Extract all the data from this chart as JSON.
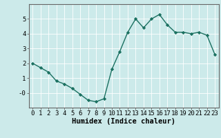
{
  "x": [
    0,
    1,
    2,
    3,
    4,
    5,
    6,
    7,
    8,
    9,
    10,
    11,
    12,
    13,
    14,
    15,
    16,
    17,
    18,
    19,
    20,
    21,
    22,
    23
  ],
  "y": [
    2.0,
    1.7,
    1.4,
    0.8,
    0.6,
    0.3,
    -0.1,
    -0.5,
    -0.6,
    -0.4,
    1.6,
    2.8,
    4.1,
    5.0,
    4.4,
    5.0,
    5.3,
    4.6,
    4.1,
    4.1,
    4.0,
    4.1,
    3.9,
    2.6
  ],
  "line_color": "#1a7060",
  "marker": "D",
  "marker_size": 2.2,
  "linewidth": 1.0,
  "xlabel": "Humidex (Indice chaleur)",
  "xlim": [
    -0.5,
    23.5
  ],
  "ylim": [
    -1.0,
    6.0
  ],
  "yticks": [
    0,
    1,
    2,
    3,
    4,
    5
  ],
  "ytick_labels": [
    "-0",
    "1",
    "2",
    "3",
    "4",
    "5"
  ],
  "xticks": [
    0,
    1,
    2,
    3,
    4,
    5,
    6,
    7,
    8,
    9,
    10,
    11,
    12,
    13,
    14,
    15,
    16,
    17,
    18,
    19,
    20,
    21,
    22,
    23
  ],
  "bg_color": "#cceaea",
  "grid_color": "#ffffff",
  "grid_linewidth": 0.6,
  "xlabel_fontsize": 7.5,
  "tick_fontsize": 6.5,
  "fig_bg_color": "#cceaea",
  "spine_color": "#666666"
}
